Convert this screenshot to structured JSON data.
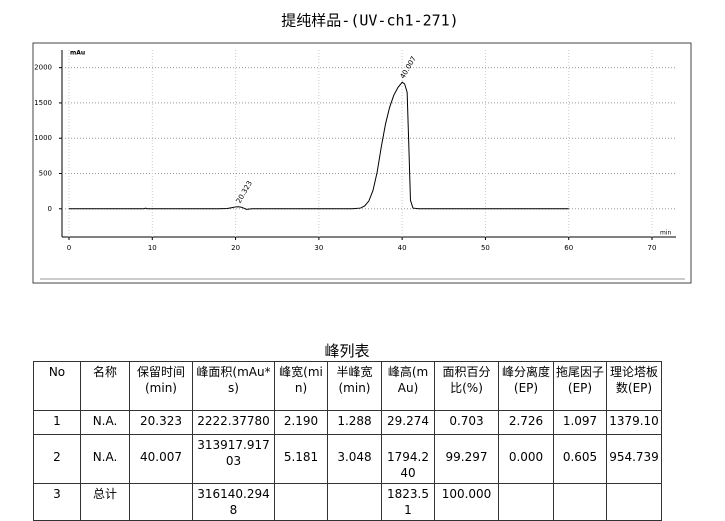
{
  "chart_data": {
    "type": "line",
    "title": "提纯样品-(UV-ch1-271)",
    "y_label": "mAu",
    "x_label": "min",
    "xlim": [
      0,
      70
    ],
    "xticks": [
      0,
      10,
      20,
      30,
      40,
      50,
      60,
      70
    ],
    "ylim": [
      -400,
      2250
    ],
    "yticks": [
      0,
      500,
      1000,
      1500,
      2000
    ],
    "grid": true,
    "peaks": [
      20.323,
      40.007
    ],
    "peak_heights": [
      29.274,
      1794.24
    ],
    "series": [
      {
        "color": "#000000",
        "x": [
          0,
          9,
          9.2,
          9.4,
          18,
          19,
          19.5,
          20,
          20.323,
          20.7,
          21,
          21.3,
          22,
          30,
          34,
          35,
          35.5,
          36,
          36.5,
          37,
          37.5,
          38,
          38.5,
          39,
          39.5,
          40.007,
          40.3,
          40.6,
          40.8,
          41,
          41.3,
          42,
          50,
          60
        ],
        "values": [
          0,
          0,
          8,
          0,
          0,
          4,
          15,
          26,
          29.274,
          22,
          8,
          -8,
          0,
          0,
          0,
          10,
          40,
          110,
          260,
          520,
          880,
          1200,
          1440,
          1610,
          1720,
          1794.24,
          1770,
          1650,
          900,
          120,
          10,
          0,
          0,
          0
        ]
      }
    ]
  },
  "table": {
    "title": "峰列表",
    "headers": [
      "No",
      "名称",
      "保留时间(min)",
      "峰面积(mAu*s)",
      "峰宽(min)",
      "半峰宽(min)",
      "峰高(mAu)",
      "面积百分比(%)",
      "峰分离度(EP)",
      "拖尾因子(EP)",
      "理论塔板数(EP)"
    ],
    "rows": [
      [
        "1",
        "N.A.",
        "20.323",
        "2222.37780",
        "2.190",
        "1.288",
        "29.274",
        "0.703",
        "2.726",
        "1.097",
        "1379.10"
      ],
      [
        "2",
        "N.A.",
        "40.007",
        "313917.91703",
        "5.181",
        "3.048",
        "1794.240",
        "99.297",
        "0.000",
        "0.605",
        "954.739"
      ],
      [
        "3",
        "总计",
        null,
        "316140.2948",
        null,
        null,
        "1823.51",
        "100.000",
        null,
        null,
        null
      ]
    ]
  }
}
